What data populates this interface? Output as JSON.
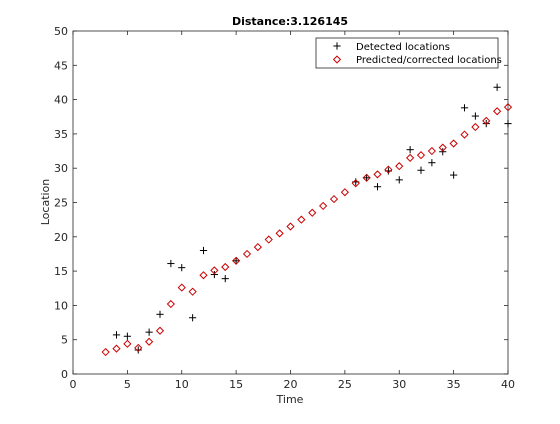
{
  "chart_data": {
    "type": "scatter",
    "title": "Distance:3.126145",
    "xlabel": "Time",
    "ylabel": "Location",
    "xlim": [
      0,
      40
    ],
    "ylim": [
      0,
      50
    ],
    "xticks": [
      "0",
      "5",
      "10",
      "15",
      "20",
      "25",
      "30",
      "35",
      "40"
    ],
    "yticks": [
      "0",
      "5",
      "10",
      "15",
      "20",
      "25",
      "30",
      "35",
      "40",
      "45",
      "50"
    ],
    "grid": false,
    "legend_position": "top-right",
    "series": [
      {
        "name": "Detected locations",
        "marker": "plus",
        "color": "#000000",
        "x": [
          4,
          5,
          6,
          7,
          8,
          9,
          10,
          11,
          12,
          13,
          14,
          15,
          26,
          27,
          28,
          29,
          30,
          31,
          32,
          33,
          34,
          35,
          36,
          37,
          38,
          39,
          40
        ],
        "y": [
          5.7,
          5.5,
          3.5,
          6.1,
          8.7,
          16.1,
          15.5,
          8.2,
          18.0,
          14.5,
          13.9,
          16.5,
          28.0,
          28.6,
          27.3,
          29.6,
          28.3,
          32.7,
          29.7,
          30.8,
          32.4,
          29.0,
          38.8,
          37.6,
          36.5,
          41.8,
          36.5
        ]
      },
      {
        "name": "Predicted/corrected locations",
        "marker": "diamond",
        "color": "#cc0000",
        "x": [
          3,
          4,
          5,
          6,
          7,
          8,
          9,
          10,
          11,
          12,
          13,
          14,
          15,
          16,
          17,
          18,
          19,
          20,
          21,
          22,
          23,
          24,
          25,
          26,
          27,
          28,
          29,
          30,
          31,
          32,
          33,
          34,
          35,
          36,
          37,
          38,
          39,
          40
        ],
        "y": [
          3.2,
          3.7,
          4.4,
          3.8,
          4.7,
          6.3,
          10.2,
          12.6,
          12.0,
          14.4,
          15.1,
          15.6,
          16.5,
          17.5,
          18.5,
          19.6,
          20.5,
          21.5,
          22.5,
          23.5,
          24.5,
          25.5,
          26.5,
          27.8,
          28.6,
          29.1,
          29.8,
          30.3,
          31.5,
          31.9,
          32.5,
          33.0,
          33.6,
          34.9,
          36.0,
          36.9,
          38.3,
          38.9
        ]
      }
    ]
  }
}
